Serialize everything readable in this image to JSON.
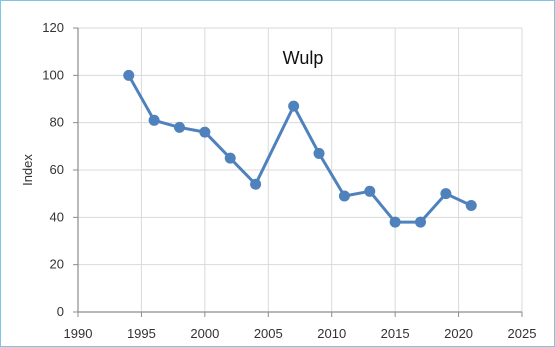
{
  "chart_data": {
    "type": "line",
    "title": "Wulp",
    "xlabel": "",
    "ylabel": "Index",
    "xlim": [
      1990,
      2025
    ],
    "ylim": [
      0,
      120
    ],
    "xticks": [
      1990,
      1995,
      2000,
      2005,
      2010,
      2015,
      2020,
      2025
    ],
    "yticks": [
      0,
      20,
      40,
      60,
      80,
      100,
      120
    ],
    "grid": true,
    "legend": "none",
    "colors": {
      "series": "#4f81bd",
      "grid": "#d9d9d9",
      "axis": "#8c8c8c",
      "frame": "#7fc4e3"
    },
    "series": [
      {
        "x": [
          1994,
          1996,
          1998,
          2000,
          2002,
          2004,
          2007,
          2009,
          2011,
          2013,
          2015,
          2017,
          2019,
          2021
        ],
        "y": [
          100,
          81,
          78,
          76,
          65,
          54,
          87,
          67,
          49,
          51,
          38,
          38,
          50,
          45
        ]
      }
    ]
  }
}
